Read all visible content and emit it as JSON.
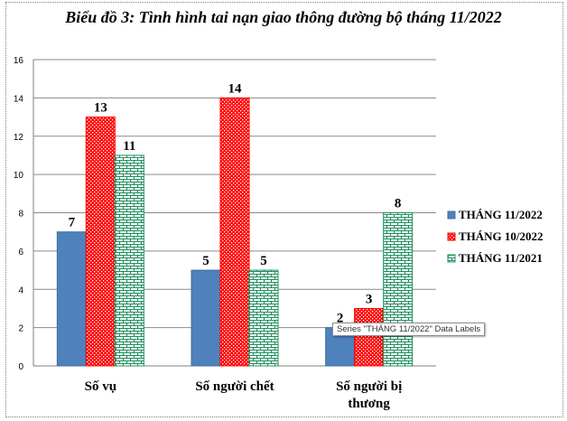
{
  "chart_data": {
    "type": "bar",
    "title": "Biểu đồ 3: Tình hình tai nạn giao thông đường bộ tháng 11/2022",
    "categories": [
      "Số vụ",
      "Số người chết",
      "Số người bị thương"
    ],
    "series": [
      {
        "name": "THÁNG 11/2022",
        "values": [
          7,
          5,
          2
        ],
        "color": "#4f81bd",
        "pattern": "solid"
      },
      {
        "name": "THÁNG 10/2022",
        "values": [
          13,
          14,
          3
        ],
        "color": "#ff0000",
        "pattern": "dots"
      },
      {
        "name": "THÁNG 11/2021",
        "values": [
          11,
          5,
          8
        ],
        "color": "#1f8f5f",
        "pattern": "bricks"
      }
    ],
    "ylim": [
      0,
      16
    ],
    "yticks": [
      0,
      2,
      4,
      6,
      8,
      10,
      12,
      14,
      16
    ],
    "data_labels": [
      [
        "7",
        "5",
        "2"
      ],
      [
        "13",
        "14",
        "3"
      ],
      [
        "11",
        "5",
        "8"
      ]
    ],
    "grid": true,
    "legend_position": "right"
  },
  "tooltip": {
    "text": "Series \"THÁNG 11/2022\" Data Labels"
  }
}
